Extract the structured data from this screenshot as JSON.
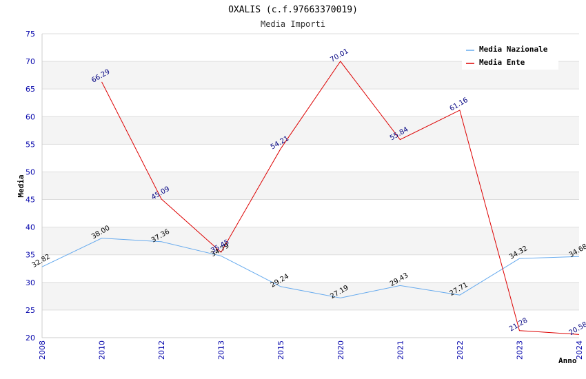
{
  "chart_data": {
    "type": "line",
    "title": "OXALIS (c.f.97663370019)",
    "subtitle": "Media Importi",
    "xlabel": "Anno",
    "ylabel": "Media",
    "ylim": [
      20,
      75
    ],
    "yticks": [
      20,
      25,
      30,
      35,
      40,
      45,
      50,
      55,
      60,
      65,
      70,
      75
    ],
    "categories": [
      "2008",
      "2010",
      "2012",
      "2013",
      "2015",
      "2020",
      "2021",
      "2022",
      "2023",
      "2024"
    ],
    "grid": true,
    "legend_position": "top-right",
    "series": [
      {
        "name": "Media Nazionale",
        "color": "#66aaee",
        "values": [
          32.82,
          38.0,
          37.36,
          34.79,
          29.24,
          27.19,
          29.43,
          27.71,
          34.32,
          34.68
        ],
        "labels": [
          "32.82",
          "38.00",
          "37.36",
          "34.79",
          "29.24",
          "27.19",
          "29.43",
          "27.71",
          "34.32",
          "34.68"
        ]
      },
      {
        "name": "Media Ente",
        "color": "#dd0000",
        "values": [
          null,
          66.29,
          45.09,
          35.45,
          54.21,
          70.01,
          55.84,
          61.16,
          21.28,
          20.58
        ],
        "labels": [
          "",
          "66.29",
          "45.09",
          "35.45",
          "54.21",
          "70.01",
          "55.84",
          "61.16",
          "21.28",
          "20.58"
        ]
      }
    ]
  }
}
